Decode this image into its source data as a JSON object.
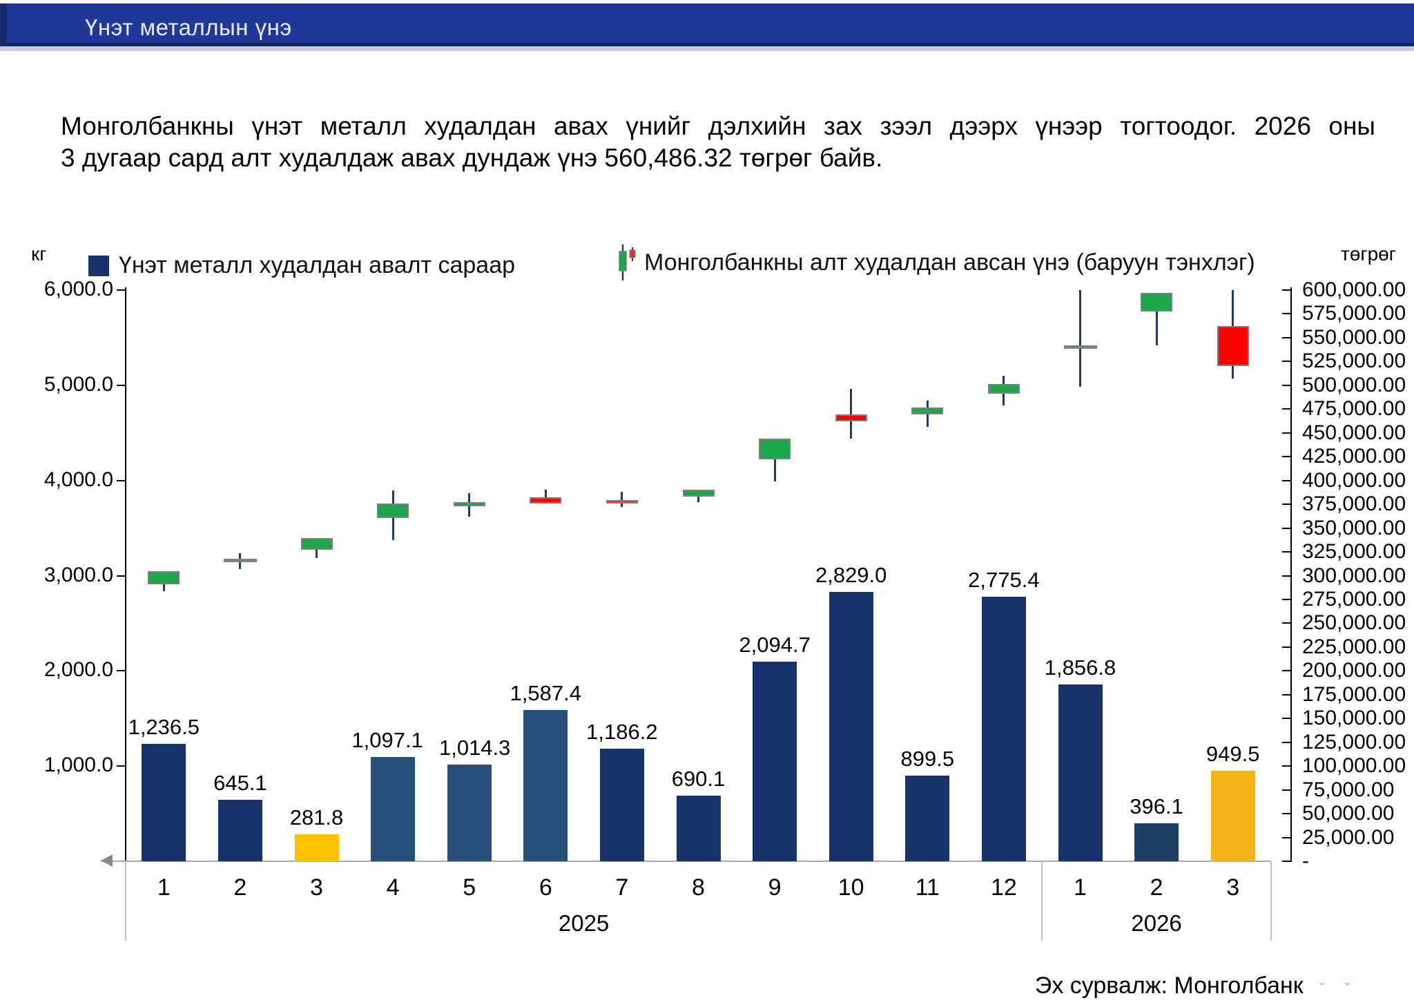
{
  "header": {
    "title": "Үнэт металлын үнэ"
  },
  "description": {
    "line1": "Монголбанкны үнэт металл худалдан авах үнийг дэлхийн зах зээл дээрх үнээр тогтоодог. 2026 оны",
    "line2": "3 дугаар сард алт худалдаж авах дундаж үнэ 560,486.32 төгрөг байв."
  },
  "legend": {
    "items": [
      {
        "label": "Үнэт металл худалдан авалт сараар",
        "marker": "navy-square"
      },
      {
        "label": "Монголбанкны алт худалдан авсан үнэ (баруун тэнхлэг)",
        "marker": "candlestick-icon"
      }
    ]
  },
  "axes": {
    "left": {
      "unit": "кг",
      "labels": [
        "6,000.0",
        "5,000.0",
        "4,000.0",
        "3,000.0",
        "2,000.0",
        "1,000.0",
        "-"
      ],
      "max": 6000
    },
    "right": {
      "unit": "төгрөг",
      "labels": [
        "600,000.00",
        "575,000.00",
        "550,000.00",
        "525,000.00",
        "500,000.00",
        "475,000.00",
        "450,000.00",
        "425,000.00",
        "400,000.00",
        "375,000.00",
        "350,000.00",
        "325,000.00",
        "300,000.00",
        "275,000.00",
        "250,000.00",
        "225,000.00",
        "200,000.00",
        "175,000.00",
        "150,000.00",
        "125,000.00",
        "100,000.00",
        "75,000.00",
        "50,000.00",
        "25,000.00",
        "-"
      ],
      "max": 600000
    }
  },
  "footer": {
    "source": "Эх сурвалж: Монголбанк",
    "suffix": "˘˘"
  },
  "chart_data": {
    "type": "combo-bar-candlestick",
    "categories": [
      "1",
      "2",
      "3",
      "4",
      "5",
      "6",
      "7",
      "8",
      "9",
      "10",
      "11",
      "12",
      "1",
      "2",
      "3"
    ],
    "years": [
      {
        "label": "2025",
        "start": 1,
        "end": 12
      },
      {
        "label": "2026",
        "start": 13,
        "end": 15
      }
    ],
    "left_axis": {
      "label": "кг",
      "range": [
        0,
        6000
      ],
      "tick_step": 1000
    },
    "right_axis": {
      "label": "төгрөг",
      "range": [
        0,
        600000
      ],
      "tick_step": 25000
    },
    "grid": false,
    "legend_position": "top",
    "bars": {
      "name": "Үнэт металл худалдан авалт сараар",
      "values": [
        1236.5,
        645.1,
        281.8,
        1097.1,
        1014.3,
        1587.4,
        1186.2,
        690.1,
        2094.7,
        2829.0,
        899.5,
        2775.4,
        1856.8,
        396.1,
        949.5
      ],
      "labels": [
        "1,236.5",
        "645.1",
        "281.8",
        "1,097.1",
        "1,014.3",
        "1,587.4",
        "1,186.2",
        "690.1",
        "2,094.7",
        "2,829.0",
        "899.5",
        "2,775.4",
        "1,856.8",
        "396.1",
        "949.5"
      ],
      "colors": [
        "#16336C",
        "#16336C",
        "#FFC000",
        "#254E78",
        "#254E78",
        "#254E78",
        "#16336C",
        "#16336C",
        "#16336C",
        "#16336C",
        "#16336C",
        "#16336C",
        "#16336C",
        "#1F4065",
        "#F4B51D"
      ],
      "label_dx": [
        0,
        0,
        0,
        -8,
        8,
        0,
        0,
        0,
        0,
        0,
        0,
        0,
        0,
        0,
        0
      ]
    },
    "candles": {
      "name": "Монголбанкны алт худалдан авсан үнэ (баруун тэнхлэг)",
      "points": [
        {
          "month": "2025-1",
          "type": "up",
          "open": 291000,
          "close": 304700,
          "high": 304700,
          "low": 283600
        },
        {
          "month": "2025-2",
          "type": "doji",
          "value": 316000,
          "high": 323400,
          "low": 307200
        },
        {
          "month": "2025-3",
          "type": "up",
          "open": 327100,
          "close": 339600,
          "high": 339600,
          "low": 318400
        },
        {
          "month": "2025-4",
          "type": "up",
          "open": 360700,
          "close": 375600,
          "high": 389300,
          "low": 337100
        },
        {
          "month": "2025-5",
          "type": "up",
          "open": 373100,
          "close": 377400,
          "high": 386800,
          "low": 361900
        },
        {
          "month": "2025-6",
          "type": "down",
          "open": 382600,
          "close": 375600,
          "high": 390500,
          "low": 375600
        },
        {
          "month": "2025-7",
          "type": "down-dark",
          "open": 379800,
          "close": 376900,
          "high": 388100,
          "low": 371900
        },
        {
          "month": "2025-8",
          "type": "up",
          "open": 383100,
          "close": 390000,
          "high": 390000,
          "low": 377400
        },
        {
          "month": "2025-9",
          "type": "up",
          "open": 422100,
          "close": 443900,
          "high": 443900,
          "low": 399000
        },
        {
          "month": "2025-10",
          "type": "down",
          "open": 469400,
          "close": 462100,
          "high": 496600,
          "low": 443900
        },
        {
          "month": "2025-11",
          "type": "up",
          "open": 469400,
          "close": 476700,
          "high": 484000,
          "low": 456100
        },
        {
          "month": "2025-12",
          "type": "up",
          "open": 491300,
          "close": 501000,
          "high": 510000,
          "low": 479100
        },
        {
          "month": "2026-1",
          "type": "doji",
          "value": 540000,
          "high": 600000,
          "low": 498500
        },
        {
          "month": "2026-2",
          "type": "up",
          "open": 577400,
          "close": 597300,
          "high": 597300,
          "low": 542200
        },
        {
          "month": "2026-3",
          "type": "down",
          "open": 562100,
          "close": 520400,
          "high": 600000,
          "low": 507400
        }
      ],
      "colors": {
        "up": "#1CA64A",
        "down": "#FE0000",
        "down-dark": "#BE3B31",
        "doji": "#7F7F7F",
        "wick": "#1F3864"
      }
    }
  }
}
